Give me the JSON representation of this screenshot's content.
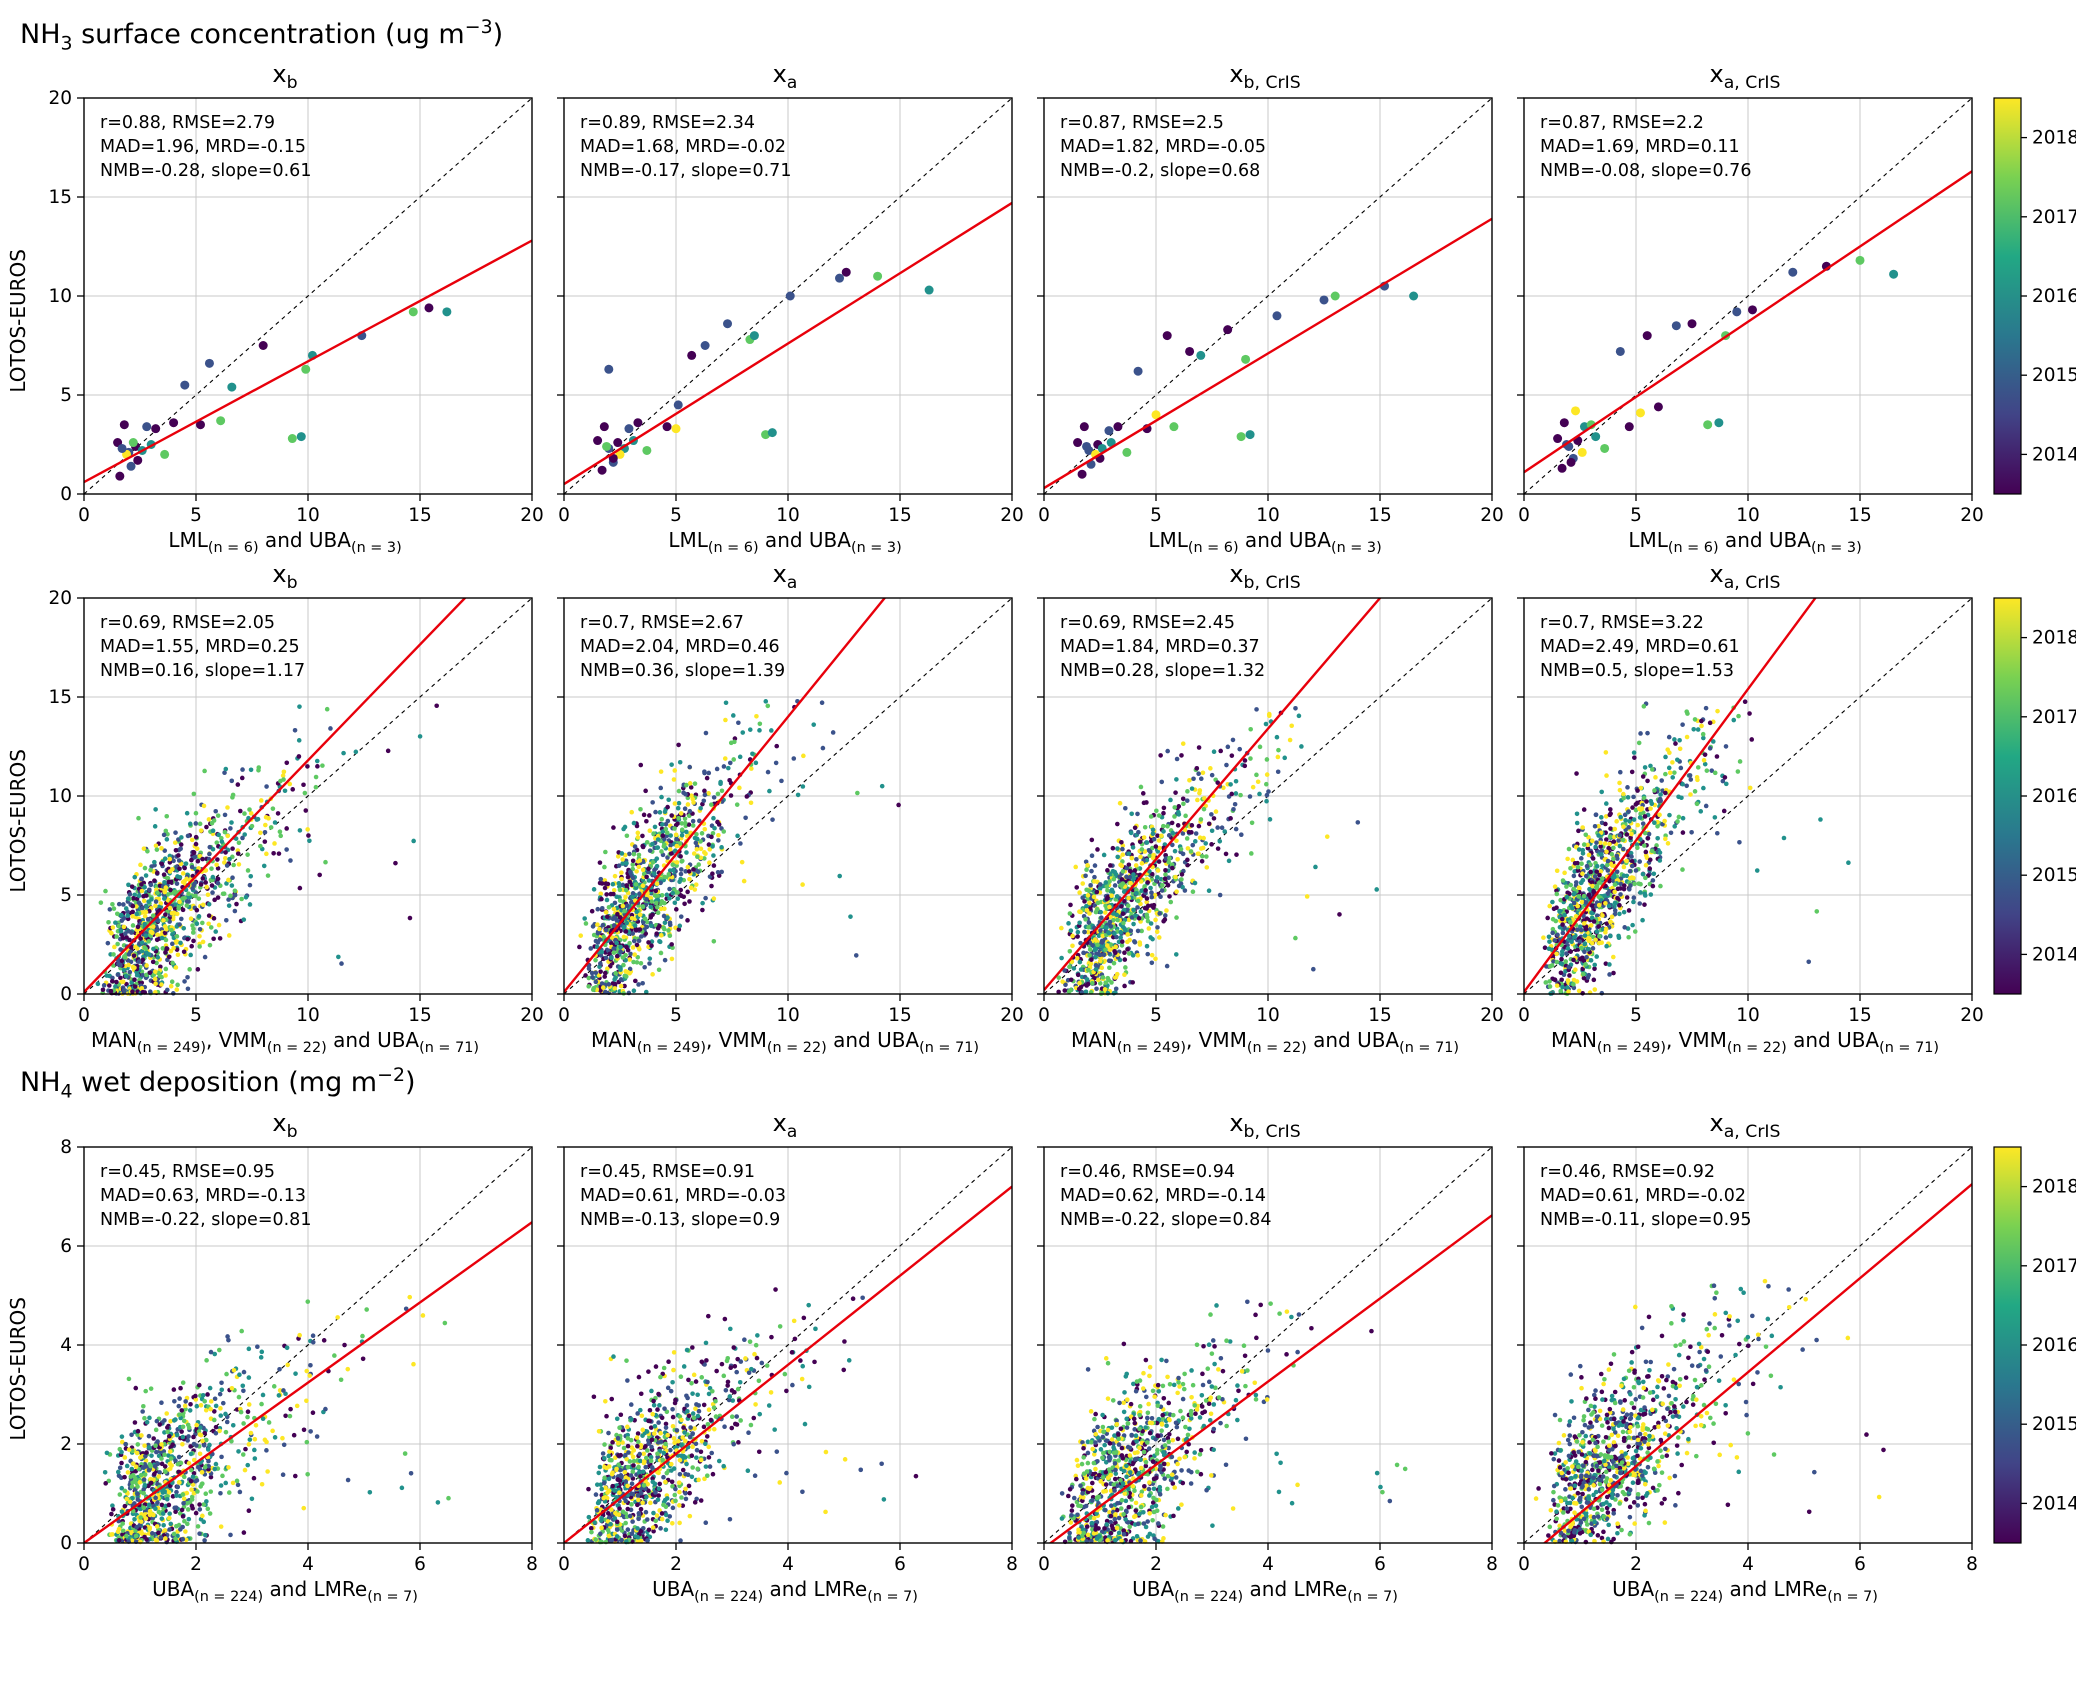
{
  "page": {
    "section_titles": [
      [
        {
          "t": "NH"
        },
        {
          "sub": "3"
        },
        {
          "t": " surface concentration (ug m"
        },
        {
          "sup": "−3"
        },
        {
          "t": ")"
        }
      ],
      [
        {
          "t": "NH"
        },
        {
          "sub": "4"
        },
        {
          "t": " wet deposition (mg m"
        },
        {
          "sup": "−2"
        },
        {
          "t": ")"
        }
      ]
    ]
  },
  "colors": {
    "fit_line": "#e8000b",
    "diagonal": "#000000",
    "grid": "#c8c8c8",
    "frame": "#000000",
    "year_colors": {
      "2014": "#440154",
      "2015": "#3b528b",
      "2016": "#21918c",
      "2017": "#5ec962",
      "2018": "#fde725"
    },
    "viridis_stops": [
      "#440154",
      "#414487",
      "#2a788e",
      "#22a884",
      "#7ad151",
      "#fde725"
    ]
  },
  "colorbar": {
    "tick_labels": [
      "2014",
      "2015",
      "2016",
      "2017",
      "2018"
    ],
    "tick_pos": [
      0.1,
      0.3,
      0.5,
      0.7,
      0.9
    ]
  },
  "chart_data": [
    {
      "type": "scatter",
      "section_index": 0,
      "ylabel": "LOTOS-EUROS",
      "xlabel_segments": [
        {
          "t": "LML"
        },
        {
          "sub": "(n = 6)"
        },
        {
          "t": " and UBA"
        },
        {
          "sub": "(n = 3)"
        }
      ],
      "axis": {
        "min": 0,
        "max": 20,
        "ticks": [
          0,
          5,
          10,
          15,
          20
        ]
      },
      "dot_radius": 4.5,
      "panels": [
        {
          "title_base": "x",
          "title_sub": "b",
          "stats": [
            "r=0.88, RMSE=2.79",
            "MAD=1.96, MRD=-0.15",
            "NMB=-0.28, slope=0.61"
          ],
          "fit": {
            "slope": 0.61,
            "intercept": 0.6
          },
          "points": [
            [
              1.5,
              2.6,
              2014
            ],
            [
              1.8,
              3.5,
              2014
            ],
            [
              2.0,
              2.1,
              2015
            ],
            [
              2.1,
              1.4,
              2015
            ],
            [
              1.6,
              0.9,
              2014
            ],
            [
              2.3,
              2.4,
              2014
            ],
            [
              2.6,
              2.2,
              2016
            ],
            [
              2.8,
              3.4,
              2015
            ],
            [
              3.2,
              3.3,
              2014
            ],
            [
              3.6,
              2.0,
              2017
            ],
            [
              4.0,
              3.6,
              2014
            ],
            [
              4.5,
              5.5,
              2015
            ],
            [
              5.2,
              3.5,
              2014
            ],
            [
              5.6,
              6.6,
              2015
            ],
            [
              6.1,
              3.7,
              2017
            ],
            [
              6.6,
              5.4,
              2016
            ],
            [
              8.0,
              7.5,
              2014
            ],
            [
              9.3,
              2.8,
              2017
            ],
            [
              9.7,
              2.9,
              2016
            ],
            [
              9.9,
              6.3,
              2017
            ],
            [
              10.2,
              7.0,
              2016
            ],
            [
              12.4,
              8.0,
              2015
            ],
            [
              14.7,
              9.2,
              2017
            ],
            [
              15.4,
              9.4,
              2014
            ],
            [
              16.2,
              9.2,
              2016
            ],
            [
              1.9,
              2.0,
              2018
            ],
            [
              2.2,
              2.6,
              2017
            ],
            [
              3.0,
              2.5,
              2016
            ],
            [
              1.7,
              2.3,
              2015
            ],
            [
              2.4,
              1.7,
              2014
            ]
          ]
        },
        {
          "title_base": "x",
          "title_sub": "a",
          "stats": [
            "r=0.89, RMSE=2.34",
            "MAD=1.68, MRD=-0.02",
            "NMB=-0.17, slope=0.71"
          ],
          "fit": {
            "slope": 0.71,
            "intercept": 0.5
          },
          "points": [
            [
              1.5,
              2.7,
              2014
            ],
            [
              1.8,
              3.4,
              2014
            ],
            [
              2.0,
              2.3,
              2015
            ],
            [
              2.2,
              1.6,
              2015
            ],
            [
              1.7,
              1.2,
              2014
            ],
            [
              2.4,
              2.6,
              2014
            ],
            [
              2.7,
              2.3,
              2016
            ],
            [
              2.9,
              3.3,
              2015
            ],
            [
              3.3,
              3.6,
              2014
            ],
            [
              3.7,
              2.2,
              2017
            ],
            [
              2.0,
              6.3,
              2015
            ],
            [
              4.6,
              3.4,
              2014
            ],
            [
              5.1,
              4.5,
              2015
            ],
            [
              5.7,
              7.0,
              2014
            ],
            [
              6.3,
              7.5,
              2015
            ],
            [
              7.3,
              8.6,
              2015
            ],
            [
              8.3,
              7.8,
              2017
            ],
            [
              8.5,
              8.0,
              2016
            ],
            [
              9.0,
              3.0,
              2017
            ],
            [
              9.3,
              3.1,
              2016
            ],
            [
              10.1,
              10.0,
              2015
            ],
            [
              12.3,
              10.9,
              2015
            ],
            [
              12.6,
              11.2,
              2014
            ],
            [
              14.0,
              11.0,
              2017
            ],
            [
              16.3,
              10.3,
              2016
            ],
            [
              5.0,
              3.3,
              2018
            ],
            [
              2.5,
              2.0,
              2018
            ],
            [
              3.1,
              2.7,
              2016
            ],
            [
              1.9,
              2.4,
              2017
            ],
            [
              2.2,
              1.8,
              2014
            ]
          ]
        },
        {
          "title_base": "x",
          "title_sub": "b, CrIS",
          "stats": [
            "r=0.87, RMSE=2.5",
            "MAD=1.82, MRD=-0.05",
            "NMB=-0.2, slope=0.68"
          ],
          "fit": {
            "slope": 0.68,
            "intercept": 0.3
          },
          "points": [
            [
              1.5,
              2.6,
              2014
            ],
            [
              1.8,
              3.4,
              2014
            ],
            [
              2.0,
              2.2,
              2015
            ],
            [
              2.1,
              1.5,
              2015
            ],
            [
              1.7,
              1.0,
              2014
            ],
            [
              2.4,
              2.5,
              2014
            ],
            [
              2.6,
              2.3,
              2016
            ],
            [
              2.9,
              3.2,
              2015
            ],
            [
              3.3,
              3.4,
              2014
            ],
            [
              3.7,
              2.1,
              2017
            ],
            [
              4.2,
              6.2,
              2015
            ],
            [
              4.6,
              3.3,
              2014
            ],
            [
              5.5,
              8.0,
              2014
            ],
            [
              5.8,
              3.4,
              2017
            ],
            [
              6.5,
              7.2,
              2014
            ],
            [
              7.0,
              7.0,
              2016
            ],
            [
              8.2,
              8.3,
              2014
            ],
            [
              8.8,
              2.9,
              2017
            ],
            [
              9.2,
              3.0,
              2016
            ],
            [
              9.0,
              6.8,
              2017
            ],
            [
              10.4,
              9.0,
              2015
            ],
            [
              12.5,
              9.8,
              2015
            ],
            [
              13.0,
              10.0,
              2017
            ],
            [
              15.2,
              10.5,
              2015
            ],
            [
              16.5,
              10.0,
              2016
            ],
            [
              2.3,
              2.0,
              2018
            ],
            [
              3.0,
              2.6,
              2016
            ],
            [
              5.0,
              4.0,
              2018
            ],
            [
              1.9,
              2.4,
              2015
            ],
            [
              2.5,
              1.8,
              2014
            ]
          ]
        },
        {
          "title_base": "x",
          "title_sub": "a, CrIS",
          "stats": [
            "r=0.87, RMSE=2.2",
            "MAD=1.69, MRD=0.11",
            "NMB=-0.08, slope=0.76"
          ],
          "fit": {
            "slope": 0.76,
            "intercept": 1.1
          },
          "points": [
            [
              1.5,
              2.8,
              2014
            ],
            [
              1.8,
              3.6,
              2014
            ],
            [
              2.0,
              2.4,
              2015
            ],
            [
              2.2,
              1.8,
              2015
            ],
            [
              1.7,
              1.3,
              2014
            ],
            [
              2.4,
              2.7,
              2014
            ],
            [
              2.7,
              3.4,
              2016
            ],
            [
              2.3,
              4.2,
              2018
            ],
            [
              3.0,
              3.5,
              2017
            ],
            [
              3.6,
              2.3,
              2017
            ],
            [
              4.3,
              7.2,
              2015
            ],
            [
              4.7,
              3.4,
              2014
            ],
            [
              5.5,
              8.0,
              2014
            ],
            [
              6.0,
              4.4,
              2014
            ],
            [
              6.8,
              8.5,
              2015
            ],
            [
              7.5,
              8.6,
              2014
            ],
            [
              8.2,
              3.5,
              2017
            ],
            [
              8.7,
              3.6,
              2016
            ],
            [
              9.5,
              9.2,
              2015
            ],
            [
              10.2,
              9.3,
              2014
            ],
            [
              12.0,
              11.2,
              2015
            ],
            [
              13.5,
              11.5,
              2014
            ],
            [
              15.0,
              11.8,
              2017
            ],
            [
              16.5,
              11.1,
              2016
            ],
            [
              2.6,
              2.1,
              2018
            ],
            [
              3.2,
              2.9,
              2016
            ],
            [
              5.2,
              4.1,
              2018
            ],
            [
              9.0,
              8.0,
              2017
            ],
            [
              1.9,
              2.5,
              2015
            ],
            [
              2.1,
              1.6,
              2014
            ]
          ]
        }
      ]
    },
    {
      "type": "scatter",
      "section_index": 0,
      "ylabel": "LOTOS-EUROS",
      "xlabel_segments": [
        {
          "t": "MAN"
        },
        {
          "sub": "(n = 249)"
        },
        {
          "t": ", VMM"
        },
        {
          "sub": "(n = 22)"
        },
        {
          "t": " and UBA"
        },
        {
          "sub": "(n = 71)"
        }
      ],
      "axis": {
        "min": 0,
        "max": 20,
        "ticks": [
          0,
          5,
          10,
          15,
          20
        ]
      },
      "dot_radius": 2.3,
      "panels": [
        {
          "title_base": "x",
          "title_sub": "b",
          "stats": [
            "r=0.69, RMSE=2.05",
            "MAD=1.55, MRD=0.25",
            "NMB=0.16, slope=1.17"
          ],
          "fit": {
            "slope": 1.17,
            "intercept": 0.1
          },
          "gen": {
            "seed": 101,
            "n": 1050,
            "mu": 1.28,
            "sigma": 0.5,
            "a": 1.05,
            "b": 0.2,
            "noise": 1.9,
            "ymax": 14.6,
            "out": 8,
            "ox0": 9,
            "oxw": 6,
            "oy0": 1,
            "oyw": 11
          }
        },
        {
          "title_base": "x",
          "title_sub": "a",
          "stats": [
            "r=0.7, RMSE=2.67",
            "MAD=2.04, MRD=0.46",
            "NMB=0.36, slope=1.39"
          ],
          "fit": {
            "slope": 1.39,
            "intercept": 0.1
          },
          "gen": {
            "seed": 102,
            "n": 1050,
            "mu": 1.28,
            "sigma": 0.5,
            "a": 1.3,
            "b": 0.2,
            "noise": 2.0,
            "ymax": 14.8,
            "out": 8,
            "ox0": 9,
            "oxw": 6,
            "oy0": 1,
            "oyw": 11
          }
        },
        {
          "title_base": "x",
          "title_sub": "b, CrIS",
          "stats": [
            "r=0.69, RMSE=2.45",
            "MAD=1.84, MRD=0.37",
            "NMB=0.28, slope=1.32"
          ],
          "fit": {
            "slope": 1.32,
            "intercept": 0.2
          },
          "gen": {
            "seed": 103,
            "n": 1050,
            "mu": 1.28,
            "sigma": 0.5,
            "a": 1.2,
            "b": 0.2,
            "noise": 1.95,
            "ymax": 14.7,
            "out": 8,
            "ox0": 9,
            "oxw": 6,
            "oy0": 1,
            "oyw": 11
          }
        },
        {
          "title_base": "x",
          "title_sub": "a, CrIS",
          "stats": [
            "r=0.7, RMSE=3.22",
            "MAD=2.49, MRD=0.61",
            "NMB=0.5, slope=1.53"
          ],
          "fit": {
            "slope": 1.53,
            "intercept": 0.1
          },
          "gen": {
            "seed": 104,
            "n": 1050,
            "mu": 1.28,
            "sigma": 0.5,
            "a": 1.45,
            "b": 0.2,
            "noise": 2.05,
            "ymax": 14.8,
            "out": 8,
            "ox0": 9,
            "oxw": 6,
            "oy0": 1,
            "oyw": 11
          }
        }
      ]
    },
    {
      "type": "scatter",
      "section_index": 1,
      "ylabel": "LOTOS-EUROS",
      "xlabel_segments": [
        {
          "t": "UBA"
        },
        {
          "sub": "(n = 224)"
        },
        {
          "t": " and LMRe"
        },
        {
          "sub": "(n = 7)"
        }
      ],
      "axis": {
        "min": 0,
        "max": 8,
        "ticks": [
          0,
          2,
          4,
          6,
          8
        ]
      },
      "dot_radius": 2.3,
      "panels": [
        {
          "title_base": "x",
          "title_sub": "b",
          "stats": [
            "r=0.45, RMSE=0.95",
            "MAD=0.63, MRD=-0.13",
            "NMB=-0.22, slope=0.81"
          ],
          "fit": {
            "slope": 0.81,
            "intercept": 0.0
          },
          "gen": {
            "seed": 201,
            "n": 900,
            "mu": 0.42,
            "sigma": 0.5,
            "a": 0.8,
            "b": 0.1,
            "noise": 0.85,
            "ymax": 5.3,
            "out": 10,
            "ox0": 3.6,
            "oxw": 3.0,
            "oy0": 0.6,
            "oyw": 1.6
          }
        },
        {
          "title_base": "x",
          "title_sub": "a",
          "stats": [
            "r=0.45, RMSE=0.91",
            "MAD=0.61, MRD=-0.03",
            "NMB=-0.13, slope=0.9"
          ],
          "fit": {
            "slope": 0.9,
            "intercept": 0.0
          },
          "gen": {
            "seed": 202,
            "n": 900,
            "mu": 0.42,
            "sigma": 0.5,
            "a": 0.92,
            "b": 0.1,
            "noise": 0.85,
            "ymax": 5.3,
            "out": 10,
            "ox0": 3.6,
            "oxw": 3.0,
            "oy0": 0.6,
            "oyw": 1.6
          }
        },
        {
          "title_base": "x",
          "title_sub": "b, CrIS",
          "stats": [
            "r=0.46, RMSE=0.94",
            "MAD=0.62, MRD=-0.14",
            "NMB=-0.22, slope=0.84"
          ],
          "fit": {
            "slope": 0.84,
            "intercept": -0.1
          },
          "gen": {
            "seed": 203,
            "n": 900,
            "mu": 0.42,
            "sigma": 0.5,
            "a": 0.85,
            "b": 0.1,
            "noise": 0.85,
            "ymax": 5.3,
            "out": 10,
            "ox0": 3.6,
            "oxw": 3.0,
            "oy0": 0.6,
            "oyw": 1.6
          }
        },
        {
          "title_base": "x",
          "title_sub": "a, CrIS",
          "stats": [
            "r=0.46, RMSE=0.92",
            "MAD=0.61, MRD=-0.02",
            "NMB=-0.11, slope=0.95"
          ],
          "fit": {
            "slope": 0.95,
            "intercept": -0.35
          },
          "gen": {
            "seed": 204,
            "n": 900,
            "mu": 0.42,
            "sigma": 0.5,
            "a": 0.98,
            "b": 0.1,
            "noise": 0.85,
            "ymax": 5.3,
            "out": 10,
            "ox0": 3.6,
            "oxw": 3.0,
            "oy0": 0.6,
            "oyw": 1.6
          }
        }
      ]
    }
  ]
}
